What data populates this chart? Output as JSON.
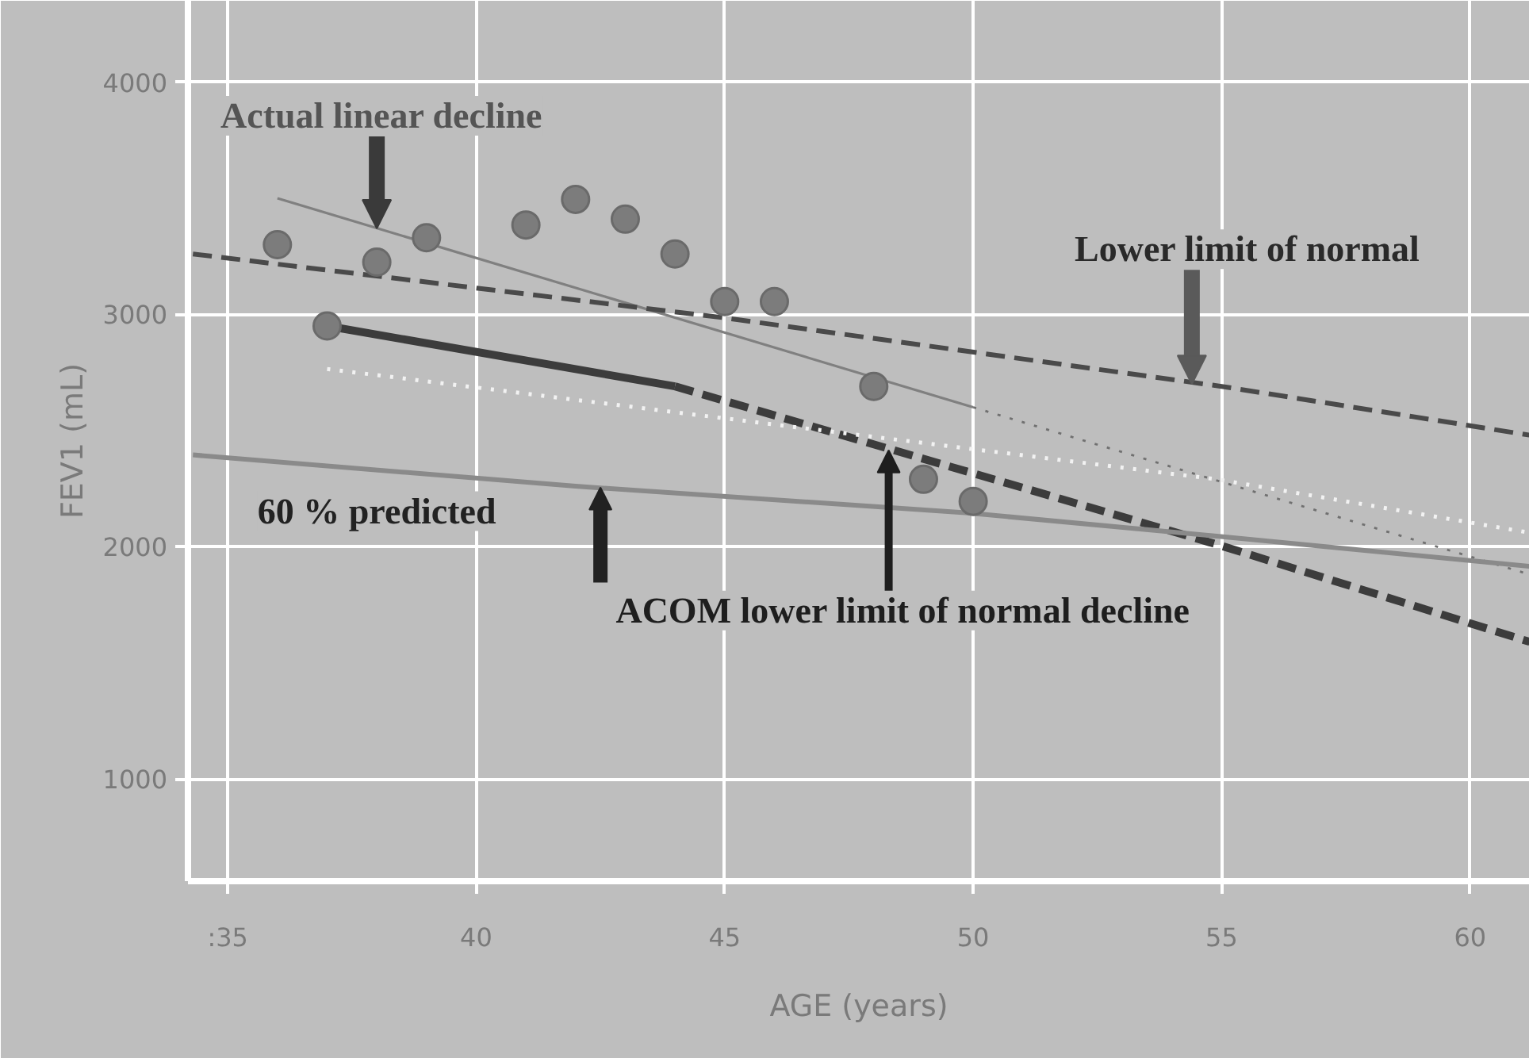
{
  "chart_data": {
    "type": "line",
    "xlabel": "AGE (years)",
    "ylabel": "FEV1 (mL)",
    "xlim": [
      34.2,
      61.2
    ],
    "ylim": [
      560,
      4350
    ],
    "xticks": [
      {
        "value": 35,
        "label": ":35"
      },
      40,
      45,
      50,
      55,
      60
    ],
    "yticks": [
      1000,
      2000,
      3000,
      4000
    ],
    "grid": true,
    "series": [
      {
        "type": "line",
        "color": "#808080",
        "line_style": "solid",
        "x": [
          36,
          50
        ],
        "values": [
          3500,
          2600
        ]
      },
      {
        "type": "line",
        "color": "#707070",
        "line_style": "dotted",
        "x": [
          50,
          61.2
        ],
        "values": [
          2600,
          1880
        ]
      },
      {
        "type": "line",
        "color": "#4a4a4a",
        "line_style": "dashed",
        "x": [
          34.3,
          45,
          55,
          61.2
        ],
        "values": [
          3260,
          2985,
          2690,
          2480
        ]
      },
      {
        "type": "line",
        "color": "#3c3c3c",
        "line_style": "solid",
        "x": [
          37,
          44
        ],
        "values": [
          2950,
          2690
        ]
      },
      {
        "type": "line",
        "color": "#3c3c3c",
        "line_style": "dashed",
        "x": [
          44,
          54.9,
          61.2
        ],
        "values": [
          2690,
          2010,
          1590
        ]
      },
      {
        "type": "line",
        "color": "#8a8a8a",
        "line_style": "solid",
        "x": [
          34.3,
          42,
          49.9,
          54.9,
          61.2
        ],
        "values": [
          2395,
          2260,
          2145,
          2045,
          1915
        ]
      },
      {
        "type": "line",
        "color": "#f2f2f2",
        "line_style": "dotted",
        "x": [
          37,
          44.9,
          54.9,
          61.2
        ],
        "values": [
          2765,
          2555,
          2290,
          2060
        ]
      },
      {
        "type": "scatter",
        "color": "#7c7c7c",
        "marker": "circle",
        "x": [
          36,
          37,
          38,
          39,
          41,
          42,
          43,
          44,
          45,
          46,
          48,
          49,
          50
        ],
        "values": [
          3300,
          2950,
          3225,
          3330,
          3385,
          3495,
          3410,
          3260,
          3055,
          3055,
          2690,
          2290,
          2195
        ]
      }
    ],
    "annotations": [
      {
        "text": "Actual linear decline",
        "x": 38,
        "y": 3370
      },
      {
        "text": "Lower limit of normal",
        "x": 54.4,
        "y": 2700
      },
      {
        "text": "60 % predicted",
        "x": 42.5,
        "y": 2255
      },
      {
        "text": "ACOM lower limit of normal decline",
        "x": 48.3,
        "y": 2415
      }
    ]
  }
}
